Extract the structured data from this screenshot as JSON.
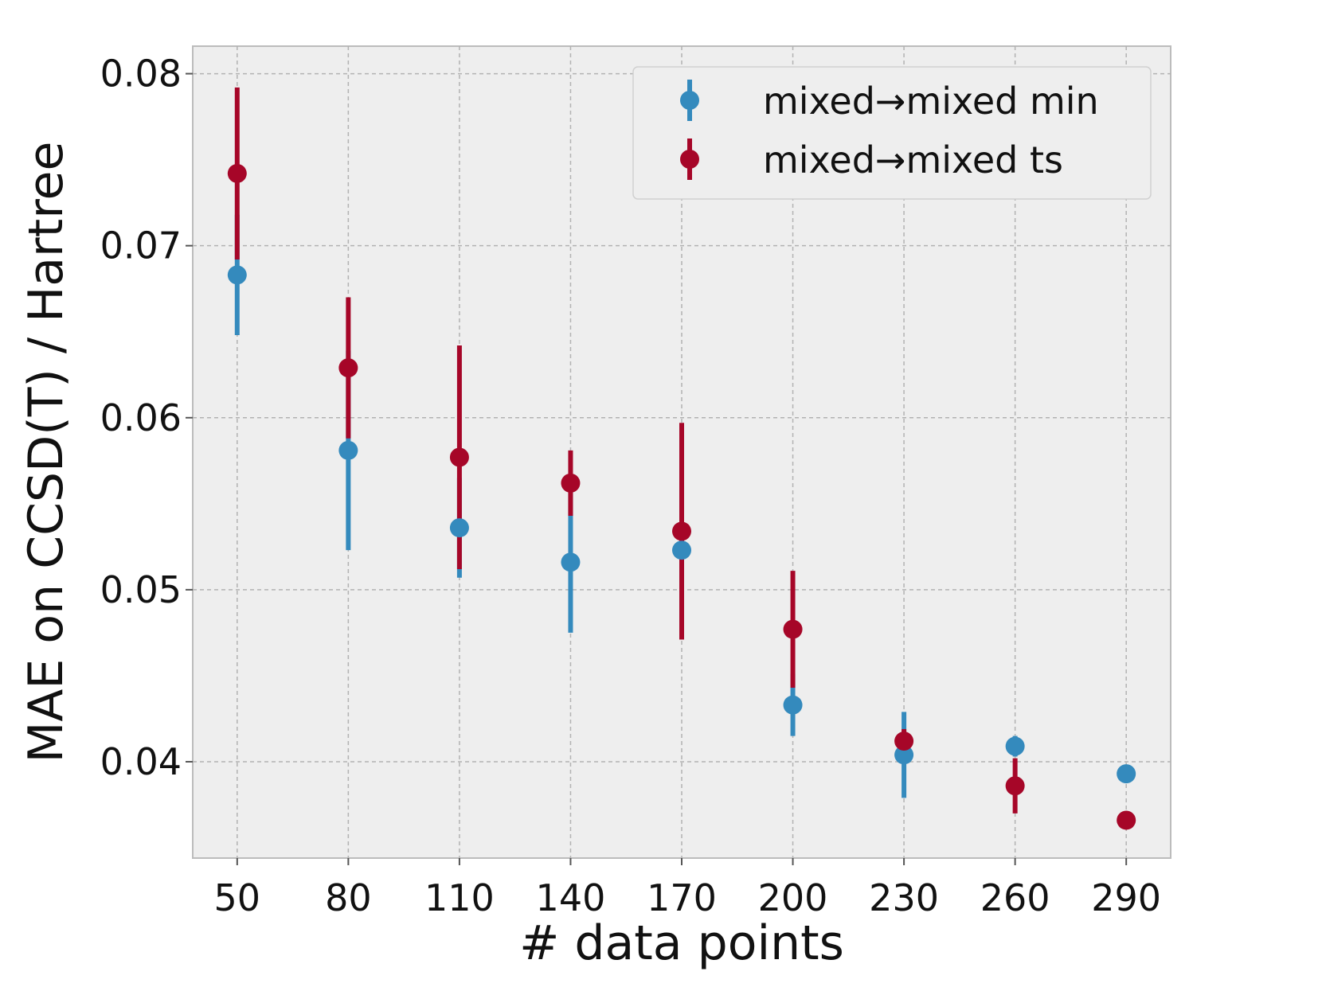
{
  "chart_data": {
    "type": "scatter",
    "title": "",
    "xlabel": "# data points",
    "ylabel": "MAE on CCSD(T) / Hartree",
    "x": [
      50,
      80,
      110,
      140,
      170,
      200,
      230,
      260,
      290
    ],
    "x_tick_labels": [
      "50",
      "80",
      "110",
      "140",
      "170",
      "200",
      "230",
      "260",
      "290"
    ],
    "y_ticks": [
      0.04,
      0.05,
      0.06,
      0.07,
      0.08
    ],
    "y_tick_labels": [
      "0.04",
      "0.05",
      "0.06",
      "0.07",
      "0.08"
    ],
    "xlim": [
      38,
      302
    ],
    "ylim": [
      0.0344,
      0.0816
    ],
    "grid": true,
    "legend_position": "top-right",
    "series": [
      {
        "name": "mixed→mixed min",
        "color": "#348abd",
        "values": [
          0.0683,
          0.0581,
          0.0536,
          0.0516,
          0.0523,
          0.0433,
          0.0404,
          0.0409,
          0.0393
        ],
        "errors": [
          0.0035,
          0.0058,
          0.0029,
          0.0041,
          0.0,
          0.0018,
          0.0025,
          0.0006,
          0.0
        ]
      },
      {
        "name": "mixed→mixed ts",
        "color": "#a60628",
        "values": [
          0.0742,
          0.0629,
          0.0577,
          0.0562,
          0.0534,
          0.0477,
          0.0412,
          0.0386,
          0.0366
        ],
        "errors": [
          0.005,
          0.0041,
          0.0065,
          0.0019,
          0.0063,
          0.0034,
          0.0007,
          0.0016,
          0.0
        ]
      }
    ]
  }
}
